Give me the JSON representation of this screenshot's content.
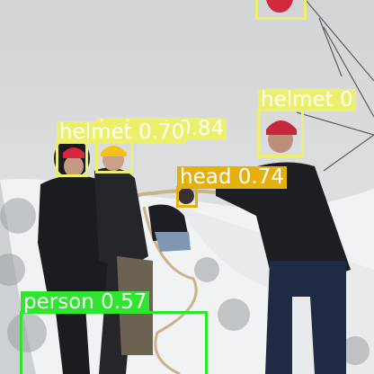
{
  "detections": [
    {
      "label": "helmet",
      "score": "",
      "color": "#ecef6a"
    },
    {
      "label": "helmet",
      "score": "0",
      "color": "#ecef6a"
    },
    {
      "label": "helmet",
      "score": "0.84",
      "color": "#ecef6a"
    },
    {
      "label": "helmet",
      "score": "0.70",
      "color": "#ecef6a"
    },
    {
      "label": "helmet",
      "score": "",
      "color": "#ecef6a"
    },
    {
      "label": "head",
      "score": "0.74",
      "color": "#e6b00c"
    },
    {
      "label": "person",
      "score": "0.57",
      "color": "#2ee62e"
    }
  ],
  "colors": {
    "helmet": "#ecef6a",
    "head": "#e6b00c",
    "person": "#2ee62e"
  }
}
